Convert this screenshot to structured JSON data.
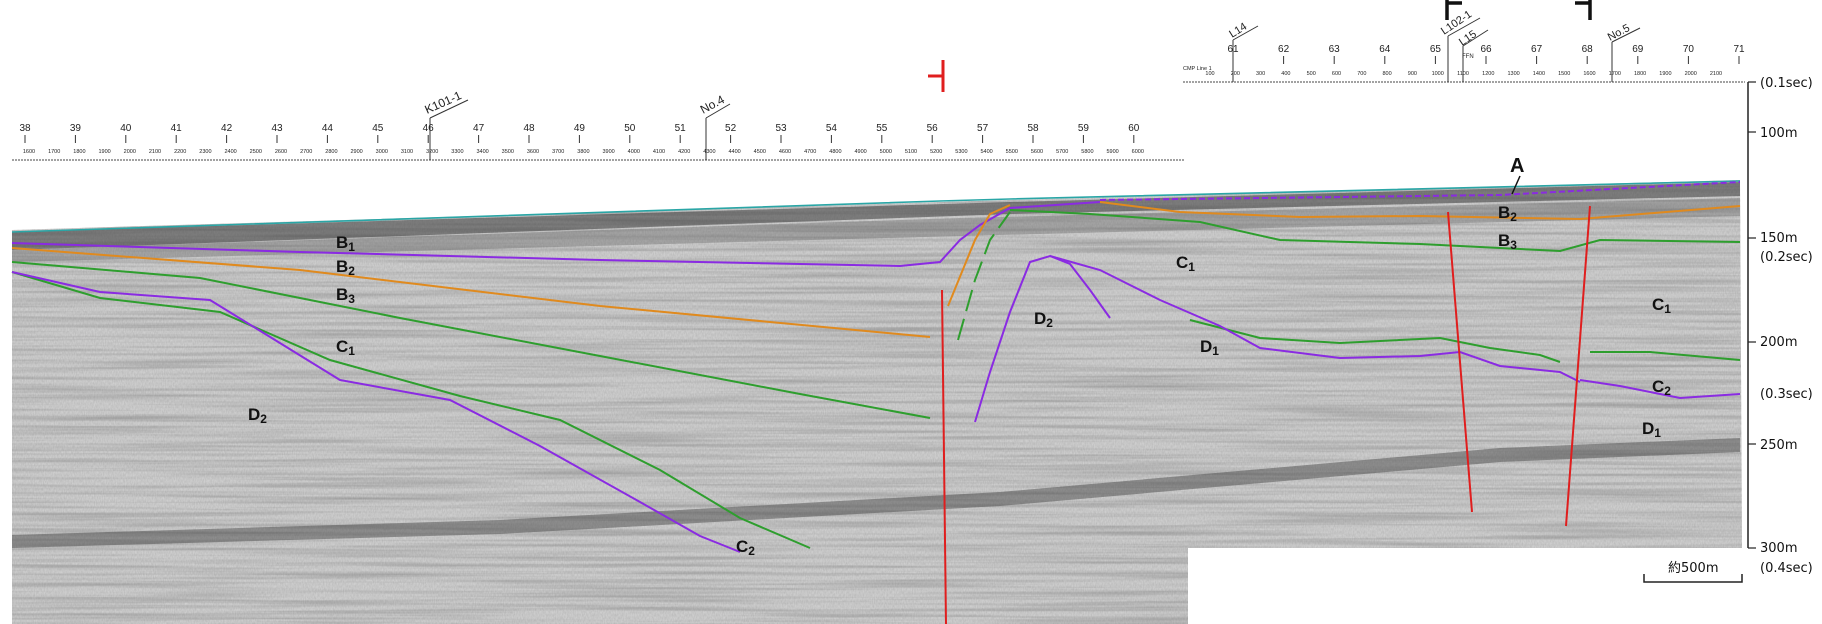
{
  "section_a": {
    "line_label": "K101-1",
    "station_label": "No.4",
    "numbers": [
      "38",
      "39",
      "40",
      "41",
      "42",
      "43",
      "44",
      "45",
      "46",
      "47",
      "48",
      "49",
      "50",
      "51",
      "52",
      "53",
      "54",
      "55",
      "56",
      "57",
      "58",
      "59",
      "60"
    ],
    "cdp": [
      "1600",
      "1700",
      "1800",
      "1900",
      "2000",
      "2100",
      "2200",
      "2300",
      "2400",
      "2500",
      "2600",
      "2700",
      "2800",
      "2900",
      "3000",
      "3100",
      "3200",
      "3300",
      "3400",
      "3500",
      "3600",
      "3700",
      "3800",
      "3900",
      "4000",
      "4100",
      "4200",
      "4300",
      "4400",
      "4500",
      "4600",
      "4700",
      "4800",
      "4900",
      "5000",
      "5100",
      "5200",
      "5300",
      "5400",
      "5500",
      "5600",
      "5700",
      "5800",
      "5900",
      "6000"
    ]
  },
  "section_b": {
    "line_labels": [
      "L14",
      "L102-1",
      "L15",
      "No.5"
    ],
    "cmp_label": "CMP Line 1",
    "ffn_label": "FFN",
    "numbers": [
      "61",
      "62",
      "63",
      "64",
      "65",
      "66",
      "67",
      "68",
      "69",
      "70",
      "71"
    ],
    "cdp": [
      "100",
      "200",
      "300",
      "400",
      "500",
      "600",
      "700",
      "800",
      "900",
      "1000",
      "1100",
      "1200",
      "1300",
      "1400",
      "1500",
      "1600",
      "1700",
      "1800",
      "1900",
      "2000",
      "2100"
    ]
  },
  "units": {
    "u1": {
      "base": "B",
      "sub": "1"
    },
    "u2": {
      "base": "B",
      "sub": "2"
    },
    "u3": {
      "base": "B",
      "sub": "3"
    },
    "c1": {
      "base": "C",
      "sub": "1"
    },
    "c2": {
      "base": "C",
      "sub": "2"
    },
    "d1": {
      "base": "D",
      "sub": "1"
    },
    "d2": {
      "base": "D",
      "sub": "2"
    },
    "a": "A"
  },
  "depth_axis": {
    "m100": "100m",
    "m150": "150m",
    "m200": "200m",
    "m250": "250m",
    "m300": "300m",
    "s01": "(0.1sec)",
    "s02": "(0.2sec)",
    "s03": "(0.3sec)",
    "s04": "(0.4sec)"
  },
  "scale_bar": "約500m",
  "colors": {
    "purple": "#8a2be2",
    "orange": "#e08a1e",
    "green": "#2e9e2e",
    "red": "#e01e1e",
    "teal": "#2aa6a6"
  }
}
